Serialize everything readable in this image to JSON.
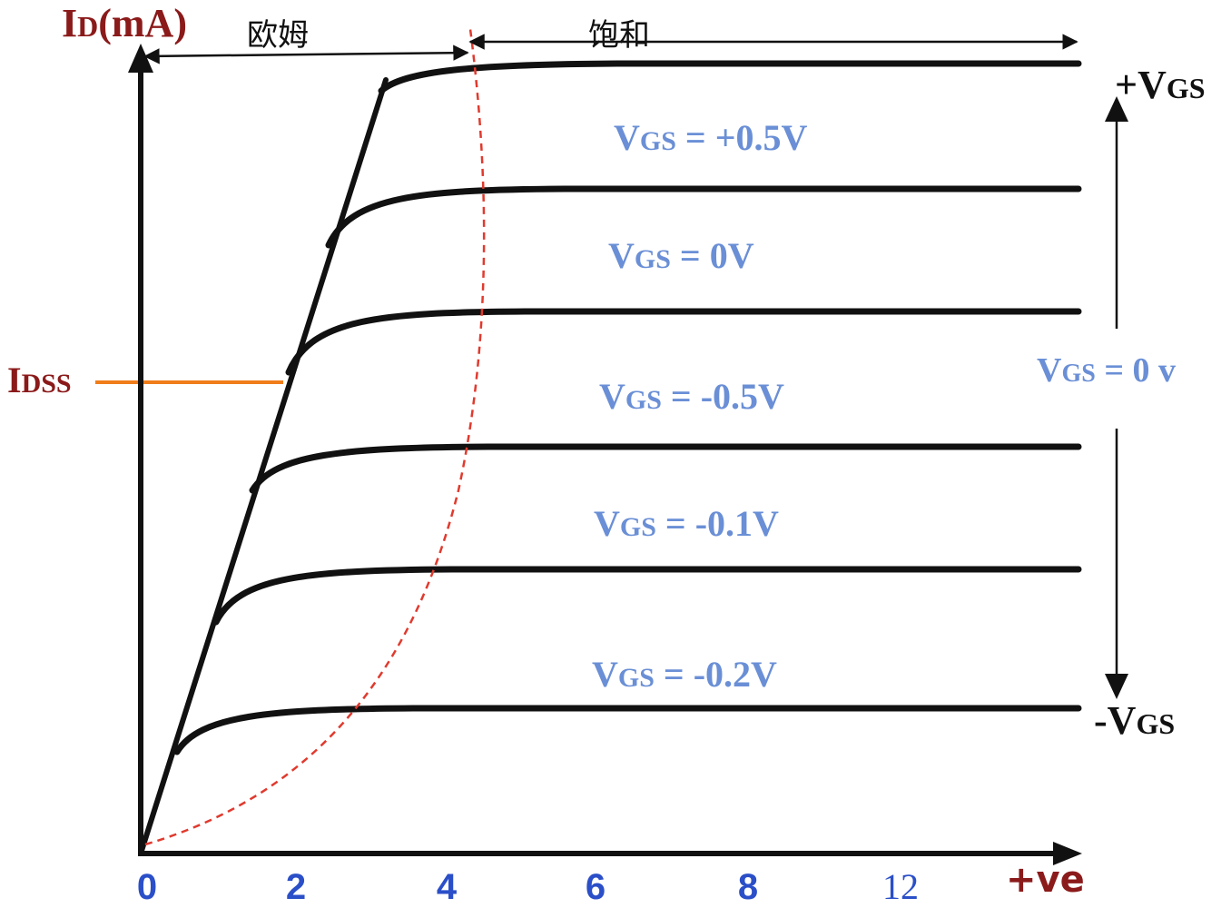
{
  "colors": {
    "axis": "#111111",
    "curve": "#111111",
    "pinch_off": "#e03a2e",
    "idss_line": "#f07d1a",
    "axis_title": "#8b1a1a",
    "vgs_label": "#6a8fd6",
    "tick_label": "#2b4fc8",
    "arrow_label": "#111111"
  },
  "y_axis_title": {
    "main": "I",
    "sub": "D",
    "unit": "(mA)"
  },
  "x_axis_title": "+ve",
  "x_ticks": [
    "0",
    "2",
    "4",
    "6",
    "8",
    "12"
  ],
  "idss_label": {
    "main": "I",
    "sub": "DSS"
  },
  "regions": {
    "ohmic": "欧姆",
    "saturation": "饱和"
  },
  "right_labels": {
    "plus_vgs": {
      "sign": "+",
      "main": "V",
      "sub": "GS"
    },
    "zero_vgs": {
      "main": "V",
      "sub": "GS",
      "rest": " = 0 v"
    },
    "minus_vgs": {
      "sign": "-",
      "main": "V",
      "sub": "GS"
    }
  },
  "chart_data": {
    "type": "line",
    "title": "",
    "xlabel": "+ve",
    "ylabel": "ID(mA)",
    "x_tick_labels": [
      "0",
      "2",
      "4",
      "6",
      "8",
      "12"
    ],
    "reference_lines": [
      {
        "name": "IDSS",
        "axis": "y"
      }
    ],
    "curve_labels": [
      {
        "main": "V",
        "sub": "GS",
        "value": " = +0.5V"
      },
      {
        "main": "V",
        "sub": "GS",
        "value": " = 0V"
      },
      {
        "main": "V",
        "sub": "GS",
        "value": " = -0.5V"
      },
      {
        "main": "V",
        "sub": "GS",
        "value": " = -0.1V"
      },
      {
        "main": "V",
        "sub": "GS",
        "value": " = -0.2V"
      }
    ],
    "series_count": 6
  }
}
